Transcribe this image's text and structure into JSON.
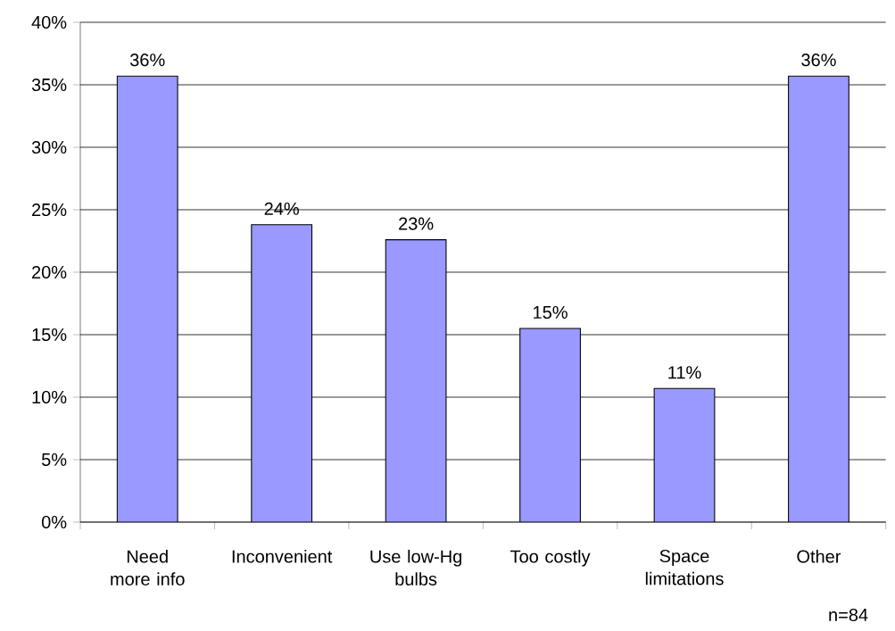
{
  "chart_data": {
    "type": "bar",
    "categories": [
      "Need more info",
      "Inconvenient",
      "Use low-Hg bulbs",
      "Too costly",
      "Space limitations",
      "Other"
    ],
    "values": [
      35.7,
      23.8,
      22.6,
      15.5,
      10.7,
      35.7
    ],
    "value_labels": [
      "36%",
      "24%",
      "23%",
      "15%",
      "11%",
      "36%"
    ],
    "color": "#9999ff",
    "ylim": [
      0,
      40
    ],
    "yticks": [
      {
        "value": 0,
        "label": "0%"
      },
      {
        "value": 5,
        "label": "5%"
      },
      {
        "value": 10,
        "label": "10%"
      },
      {
        "value": 15,
        "label": "15%"
      },
      {
        "value": 20,
        "label": "20%"
      },
      {
        "value": 25,
        "label": "25%"
      },
      {
        "value": 30,
        "label": "30%"
      },
      {
        "value": 35,
        "label": "35%"
      },
      {
        "value": 40,
        "label": "40%"
      }
    ],
    "grid": "y",
    "annotations": [
      "n=84"
    ]
  }
}
